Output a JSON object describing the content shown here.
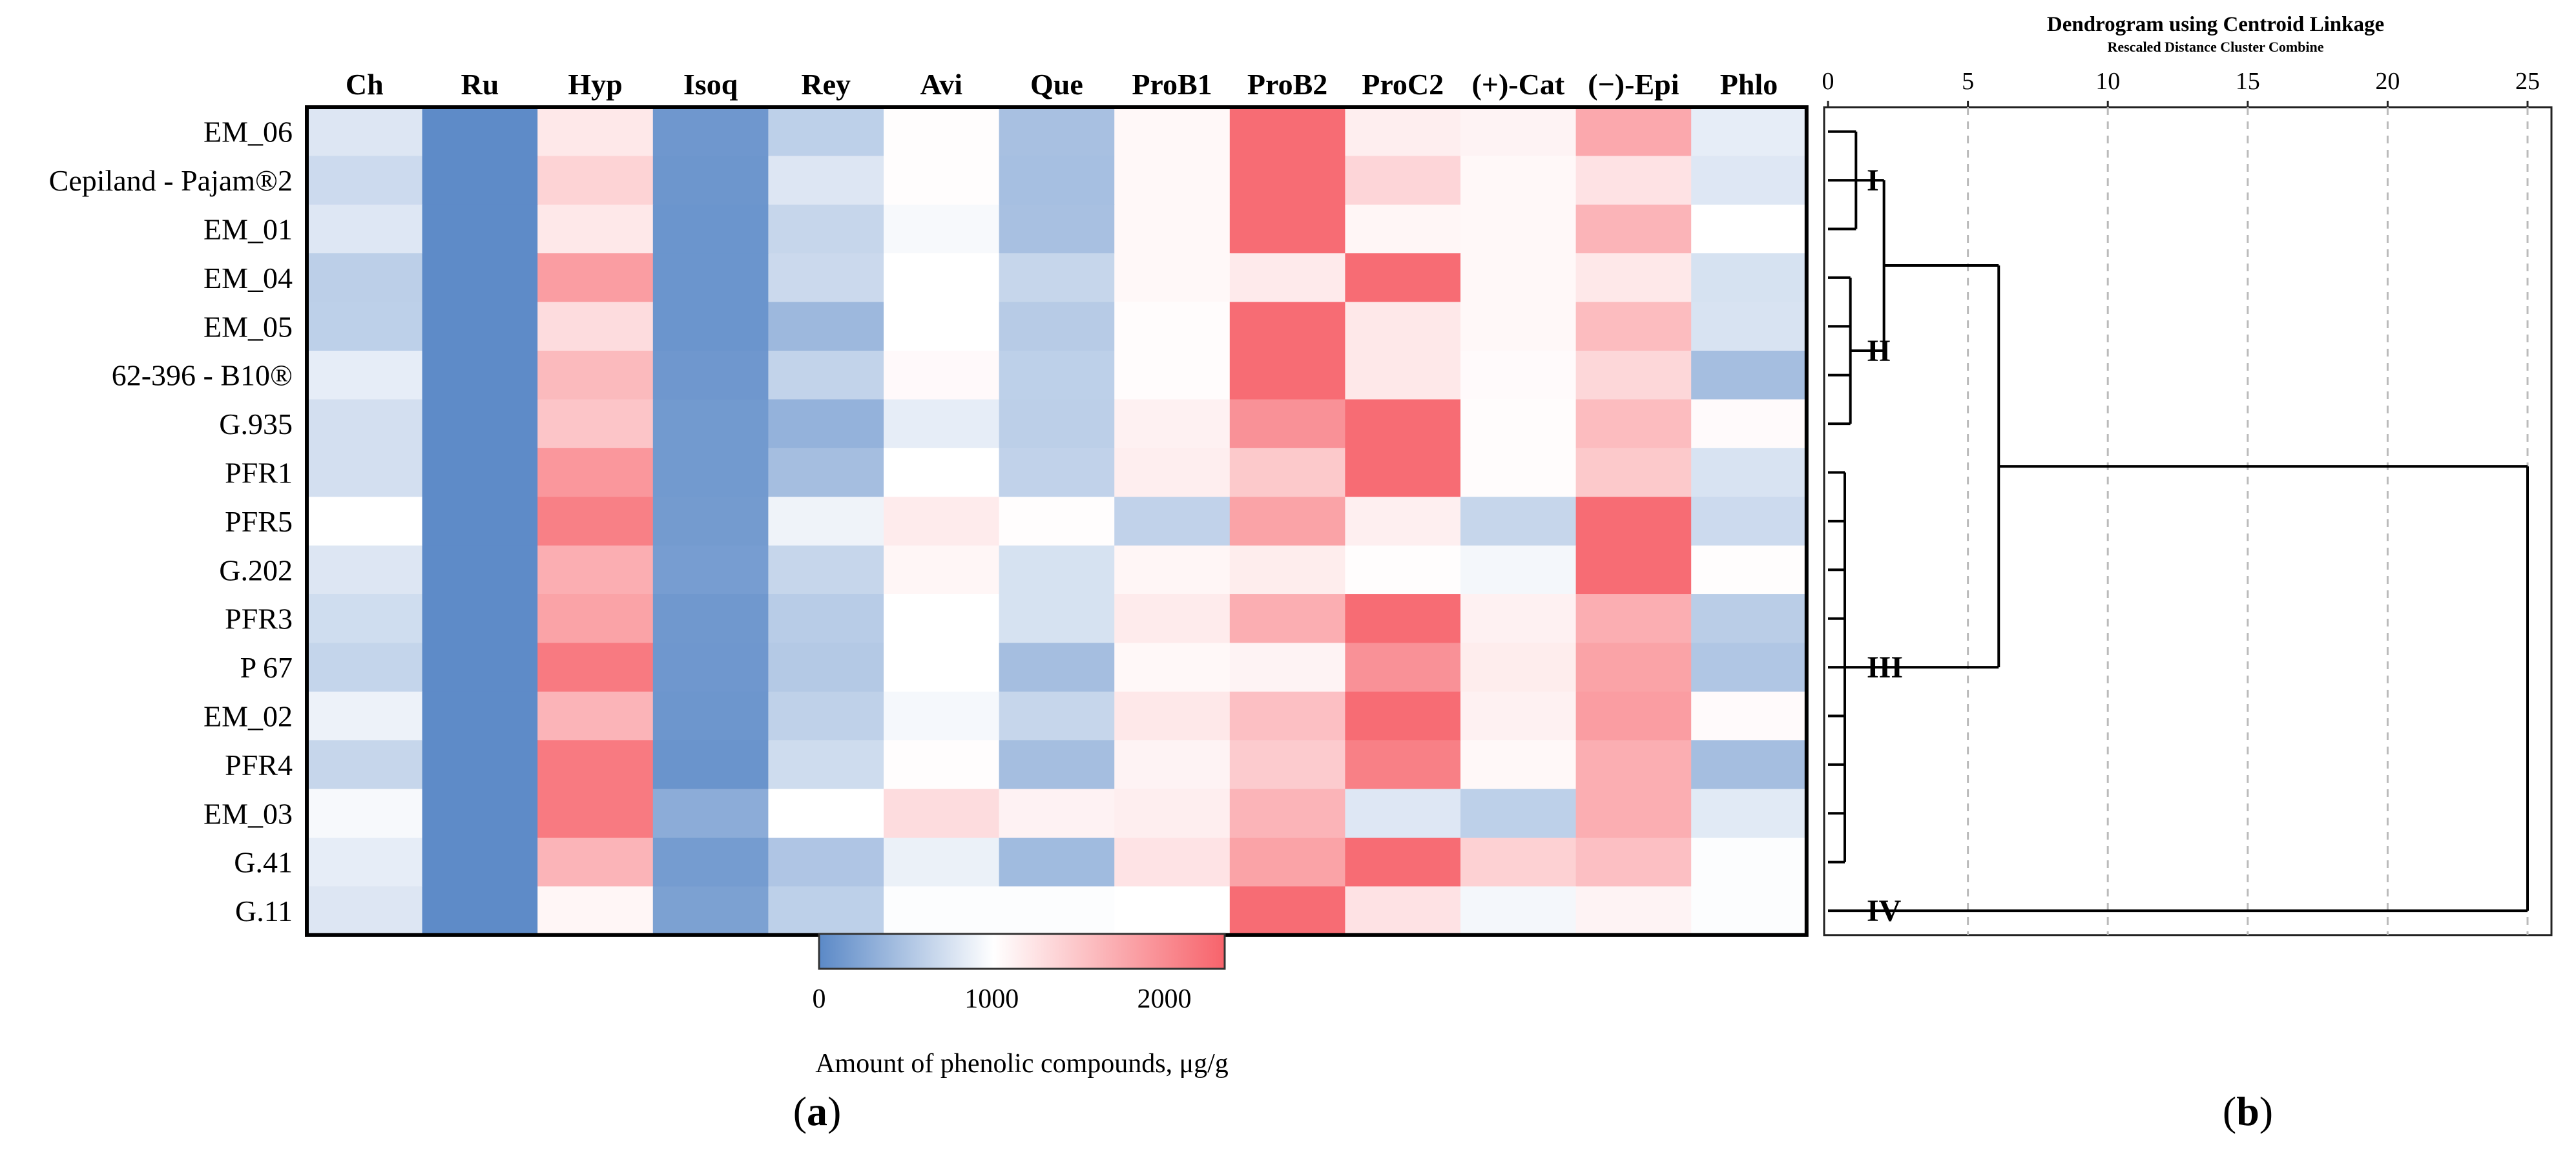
{
  "panel_a_label": "a",
  "panel_b_label": "b",
  "colors": {
    "low": "#5B89C7",
    "mid": "#FFFFFF",
    "high": "#F7636B",
    "frame": "#000000",
    "grid": "#BBBBBB"
  },
  "chart_data": [
    {
      "type": "heatmap",
      "columns": [
        "Ch",
        "Ru",
        "Hyp",
        "Isoq",
        "Rey",
        "Avi",
        "Que",
        "ProB1",
        "ProB2",
        "ProC2",
        "(+)-Cat",
        "(−)-Epi",
        "Phlo"
      ],
      "rows": [
        "EM_06",
        "Cepiland - Pajam®2",
        "EM_01",
        "EM_04",
        "EM_05",
        "62-396 - B10®",
        "G.935",
        "PFR1",
        "PFR5",
        "G.202",
        "PFR3",
        "P 67",
        "EM_02",
        "PFR4",
        "EM_03",
        "G.41",
        "G.11"
      ],
      "values": [
        [
          790,
          20,
          1200,
          120,
          600,
          1020,
          470,
          1060,
          2270,
          1150,
          1100,
          1750,
          850
        ],
        [
          690,
          20,
          1380,
          110,
          790,
          1020,
          460,
          1060,
          2270,
          1360,
          1060,
          1250,
          800
        ],
        [
          800,
          20,
          1200,
          100,
          650,
          950,
          470,
          1060,
          2270,
          1080,
          1060,
          1650,
          1000
        ],
        [
          590,
          20,
          1850,
          100,
          680,
          1000,
          650,
          1060,
          1180,
          2270,
          1060,
          1200,
          750
        ],
        [
          600,
          20,
          1300,
          100,
          400,
          1000,
          560,
          1030,
          2270,
          1200,
          1060,
          1580,
          760
        ],
        [
          850,
          20,
          1600,
          120,
          630,
          1050,
          600,
          1030,
          2270,
          1200,
          1040,
          1350,
          450
        ],
        [
          730,
          20,
          1500,
          140,
          350,
          850,
          590,
          1120,
          1950,
          2270,
          1030,
          1580,
          1040
        ],
        [
          730,
          20,
          1900,
          140,
          450,
          1000,
          620,
          1150,
          1470,
          2270,
          1030,
          1470,
          760
        ],
        [
          1000,
          20,
          2100,
          150,
          900,
          1170,
          1020,
          620,
          1800,
          1140,
          650,
          2270,
          690
        ],
        [
          790,
          20,
          1700,
          170,
          650,
          1080,
          750,
          1080,
          1160,
          1020,
          930,
          2270,
          1020
        ],
        [
          710,
          20,
          1800,
          130,
          570,
          1000,
          750,
          1170,
          1700,
          2270,
          1120,
          1700,
          580
        ],
        [
          640,
          20,
          2150,
          120,
          540,
          1000,
          450,
          1060,
          1100,
          1950,
          1160,
          1800,
          520
        ],
        [
          890,
          20,
          1650,
          110,
          610,
          940,
          650,
          1200,
          1550,
          2270,
          1120,
          1850,
          1040
        ],
        [
          650,
          20,
          2150,
          90,
          700,
          1020,
          450,
          1100,
          1450,
          2100,
          1060,
          1700,
          450
        ],
        [
          950,
          20,
          2150,
          300,
          1000,
          1300,
          1110,
          1150,
          1650,
          800,
          600,
          1700,
          820
        ],
        [
          850,
          20,
          1650,
          160,
          510,
          880,
          420,
          1240,
          1800,
          2270,
          1400,
          1550,
          980
        ],
        [
          790,
          20,
          1080,
          200,
          600,
          980,
          980,
          1000,
          2270,
          1250,
          930,
          1100,
          980
        ]
      ],
      "colorbar": {
        "min": 0,
        "max": 2350,
        "ticks": [
          0,
          1000,
          2000
        ],
        "label": "Amount of phenolic compounds, μg/g"
      }
    },
    {
      "type": "dendrogram",
      "title": "Dendrogram using Centroid Linkage",
      "subtitle": "Rescaled Distance Cluster Combine",
      "xlim": [
        0,
        25
      ],
      "ticks": [
        0,
        5,
        10,
        15,
        20,
        25
      ],
      "clusters": [
        {
          "label": "I",
          "from_row": 0,
          "to_row": 2,
          "height": 1.0
        },
        {
          "label": "II",
          "from_row": 3,
          "to_row": 6,
          "height": 0.8
        },
        {
          "label": "III",
          "from_row": 7,
          "to_row": 15,
          "height": 0.6
        },
        {
          "label": "IV",
          "from_row": 16,
          "to_row": 16,
          "height": 0
        }
      ],
      "merges": [
        {
          "a": "I",
          "b": "II",
          "height": 2.0
        },
        {
          "a": "I+II",
          "b": "III",
          "height": 6.1
        },
        {
          "a": "I+II+III",
          "b": "IV",
          "height": 25.0
        }
      ]
    }
  ]
}
